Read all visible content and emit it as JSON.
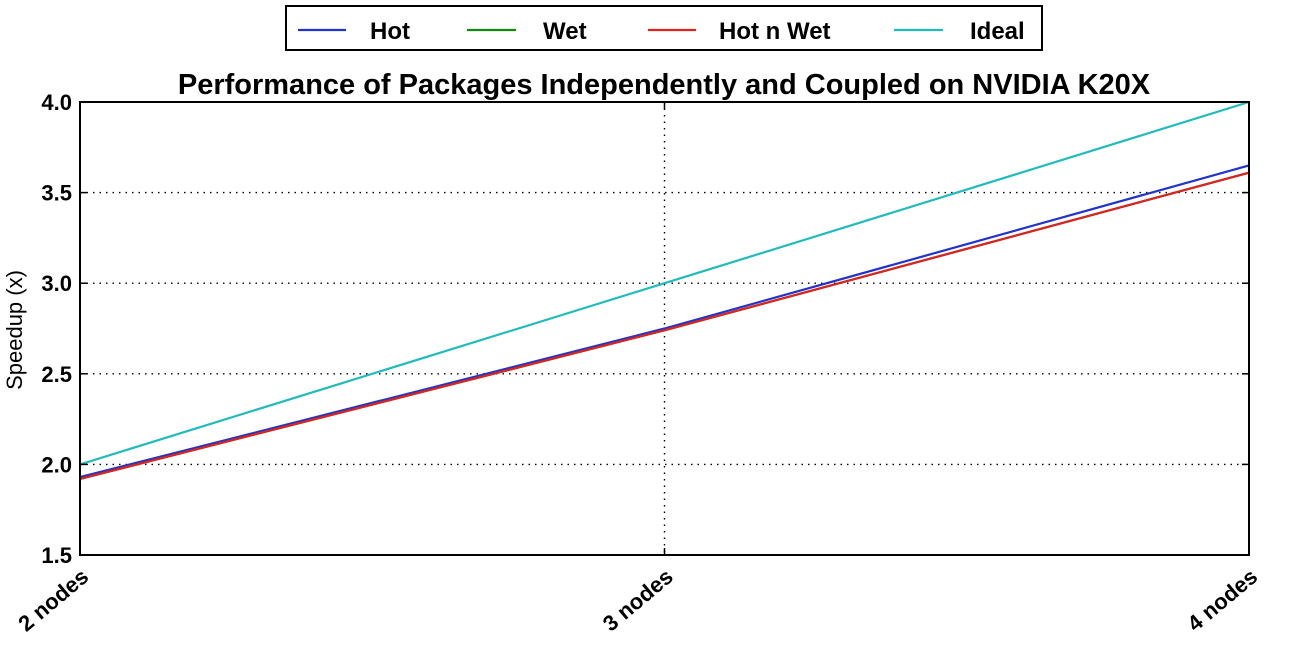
{
  "chart_data": {
    "type": "line",
    "title": "Performance of Packages Independently and Coupled on NVIDIA K20X",
    "xlabel": "",
    "ylabel": "Speedup (x)",
    "categories": [
      "2 nodes",
      "3 nodes",
      "4 nodes"
    ],
    "ylim": [
      1.5,
      4.0
    ],
    "yticks": [
      "1.5",
      "2.0",
      "2.5",
      "3.0",
      "3.5",
      "4.0"
    ],
    "grid": true,
    "legend_position": "top-center",
    "series": [
      {
        "name": "Hot",
        "color": "#2233cc",
        "values": [
          1.93,
          2.75,
          3.65
        ]
      },
      {
        "name": "Wet",
        "color": "#118811",
        "values": [
          1.92,
          2.74,
          3.61
        ]
      },
      {
        "name": "Hot n Wet",
        "color": "#dd2222",
        "values": [
          1.92,
          2.74,
          3.61
        ]
      },
      {
        "name": "Ideal",
        "color": "#22bbbb",
        "values": [
          2.0,
          3.0,
          4.0
        ]
      }
    ]
  }
}
